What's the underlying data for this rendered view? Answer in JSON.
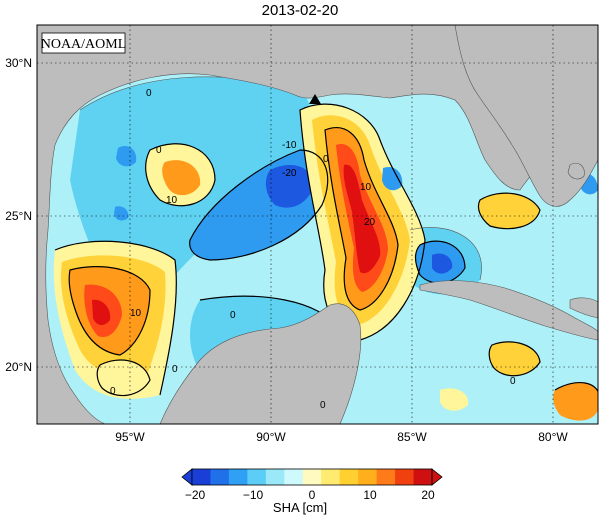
{
  "map": {
    "title": "2013-02-20",
    "agency": "NOAA/AOML",
    "lat_labels": [
      "30°N",
      "25°N",
      "20°N"
    ],
    "lon_labels": [
      "95°W",
      "90°W",
      "85°W",
      "80°W"
    ],
    "contour_labels": [
      "0",
      "0",
      "0",
      "-10",
      "-20",
      "10",
      "10",
      "10",
      "20",
      "0",
      "0",
      "0",
      "0",
      "0"
    ],
    "colors": {
      "land": "#bdbdbd",
      "deep_negative": "#1c58e0",
      "negative": "#2e9bf0",
      "mild_negative": "#5fd2f2",
      "near_zero_negative": "#aef0f8",
      "near_zero_positive": "#fff59a",
      "mild_positive": "#ffd23a",
      "positive": "#ff9a1a",
      "strong_positive": "#ff4a1a",
      "peak_positive": "#e01010"
    }
  },
  "colorbar": {
    "ticks": [
      "−20",
      "−10",
      "0",
      "10",
      "20"
    ],
    "unit_label": "SHA [cm]",
    "colors": [
      "#1a3fd6",
      "#2070ea",
      "#30a0f4",
      "#5ccdf6",
      "#9ae8f8",
      "#cffafd",
      "#fffbc0",
      "#ffeb70",
      "#ffd030",
      "#ffae1c",
      "#ff7a18",
      "#f04010",
      "#d01010"
    ]
  }
}
